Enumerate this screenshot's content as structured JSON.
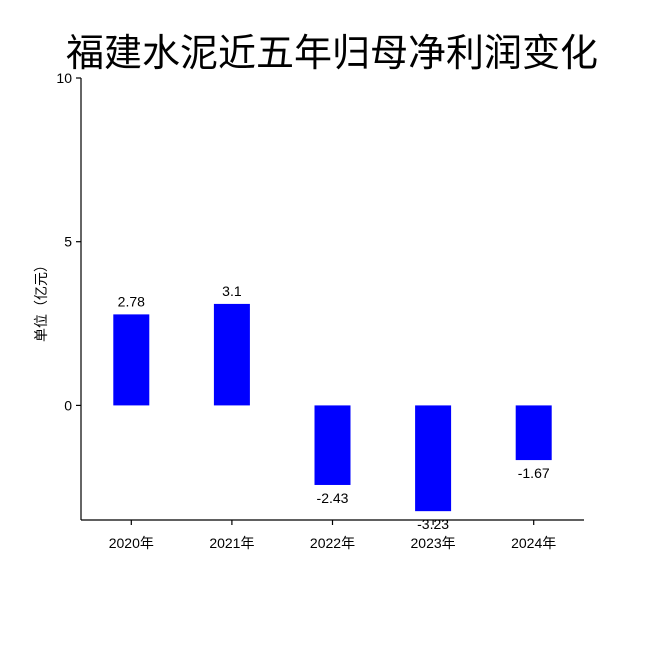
{
  "chart_data": {
    "type": "bar",
    "title": "福建水泥近五年归母净利润变化",
    "xlabel": "",
    "ylabel": "单位（亿元）",
    "categories": [
      "2020年",
      "2021年",
      "2022年",
      "2023年",
      "2024年"
    ],
    "values": [
      2.78,
      3.1,
      -2.43,
      -3.23,
      -1.67
    ],
    "data_labels": [
      "2.78",
      "3.1",
      "-2.43",
      "-3.23",
      "-1.67"
    ],
    "ylim": [
      -3.5,
      10
    ],
    "yticks": [
      0,
      5,
      10
    ],
    "ytick_labels": [
      "0",
      "5",
      "10"
    ],
    "bar_color": "#0000ff",
    "grid": false,
    "legend": "none"
  }
}
